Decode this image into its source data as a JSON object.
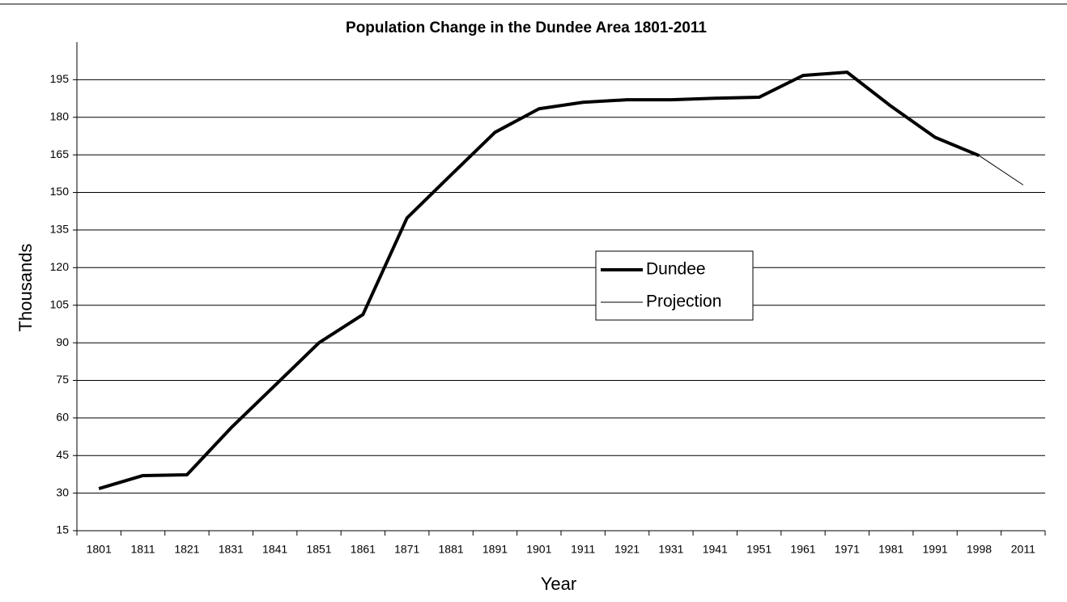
{
  "chart_data": {
    "type": "line",
    "title": "Population Change in the Dundee Area 1801-2011",
    "x_label": "Year",
    "y_label": "Thousands",
    "categories": [
      "1801",
      "1811",
      "1821",
      "1831",
      "1841",
      "1851",
      "1861",
      "1871",
      "1881",
      "1891",
      "1901",
      "1911",
      "1921",
      "1931",
      "1941",
      "1951",
      "1961",
      "1971",
      "1981",
      "1991",
      "1998",
      "2011"
    ],
    "series": [
      {
        "name": "Dundee",
        "color": "#000000",
        "width": 4,
        "values": [
          31.8,
          37,
          37.3,
          56,
          73,
          90,
          101.3,
          139.8,
          157,
          174,
          183.4,
          186,
          187,
          187,
          187.6,
          188,
          196.7,
          198,
          184.4,
          172,
          164.7,
          null
        ]
      },
      {
        "name": "Projection",
        "color": "#000000",
        "width": 1,
        "values": [
          null,
          null,
          null,
          null,
          null,
          null,
          null,
          null,
          null,
          null,
          null,
          null,
          null,
          null,
          null,
          null,
          null,
          null,
          null,
          null,
          164.7,
          153
        ]
      }
    ],
    "ylim": [
      15,
      210
    ],
    "yticks": [
      15,
      30,
      45,
      60,
      75,
      90,
      105,
      120,
      135,
      150,
      165,
      180,
      195
    ],
    "grid": true,
    "legend": "center"
  }
}
